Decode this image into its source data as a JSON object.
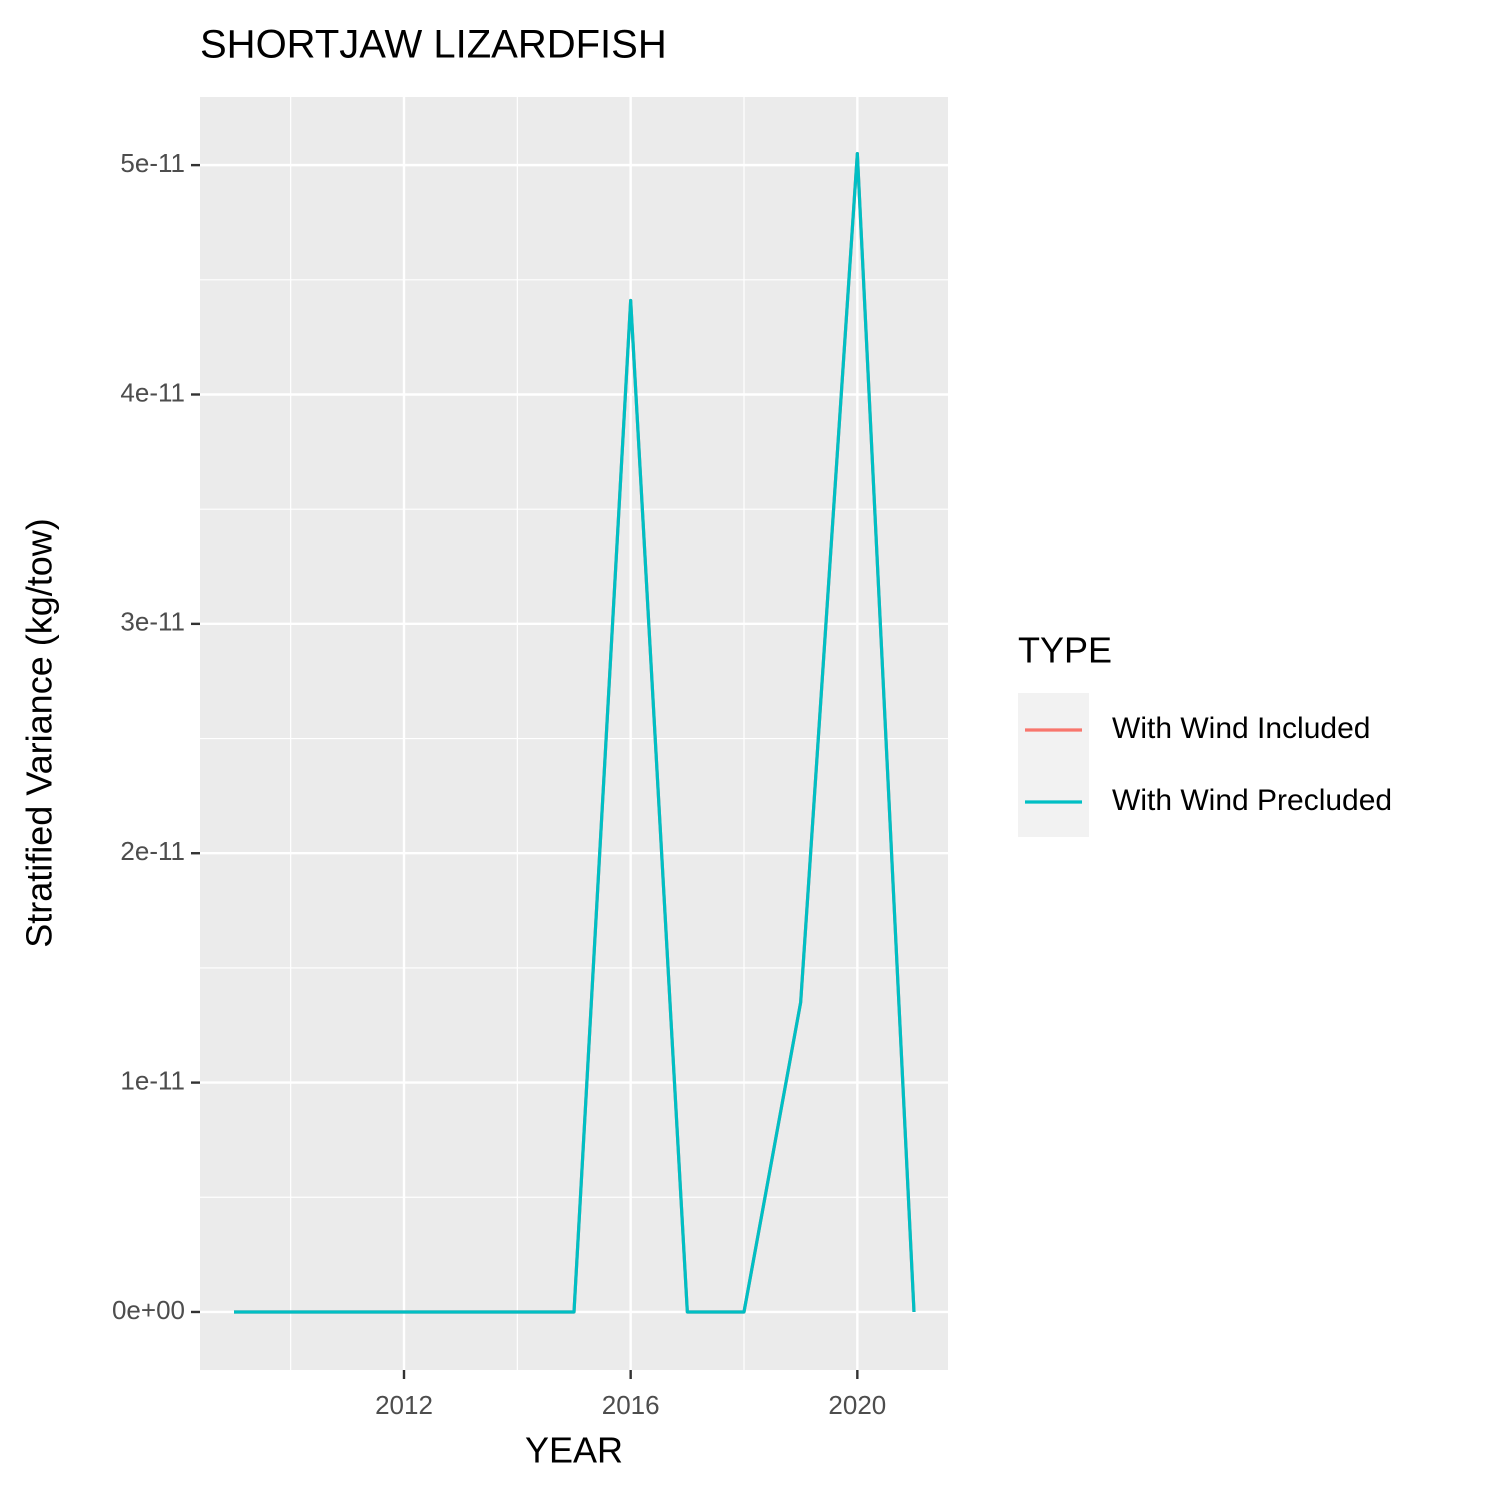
{
  "chart_data": {
    "type": "line",
    "title": "SHORTJAW LIZARDFISH",
    "x_label": "YEAR",
    "y_label": "Stratified Variance (kg/tow)",
    "x": [
      2009,
      2010,
      2011,
      2012,
      2013,
      2014,
      2015,
      2016,
      2017,
      2018,
      2019,
      2020,
      2021
    ],
    "series": [
      {
        "name": "With Wind Included",
        "color": "#F8766D",
        "values": [
          0,
          0,
          0,
          0,
          0,
          0,
          0,
          4.41e-11,
          0,
          0,
          1.35e-11,
          5.05e-11,
          0
        ]
      },
      {
        "name": "With Wind Precluded",
        "color": "#00BFC4",
        "values": [
          0,
          0,
          0,
          0,
          0,
          0,
          0,
          4.41e-11,
          0,
          0,
          1.35e-11,
          5.05e-11,
          0
        ]
      }
    ],
    "legend_title": "TYPE",
    "legend_position": "right",
    "xlim": [
      2008.4,
      2021.6
    ],
    "xticks": [
      2012,
      2016,
      2020
    ],
    "ylim": [
      -2.53e-12,
      5.297e-11
    ],
    "yticks": [
      {
        "value": 0,
        "label": "0e+00"
      },
      {
        "value": 1e-11,
        "label": "1e-11"
      },
      {
        "value": 2e-11,
        "label": "2e-11"
      },
      {
        "value": 3e-11,
        "label": "3e-11"
      },
      {
        "value": 4e-11,
        "label": "4e-11"
      },
      {
        "value": 5e-11,
        "label": "5e-11"
      }
    ],
    "grid": true
  }
}
